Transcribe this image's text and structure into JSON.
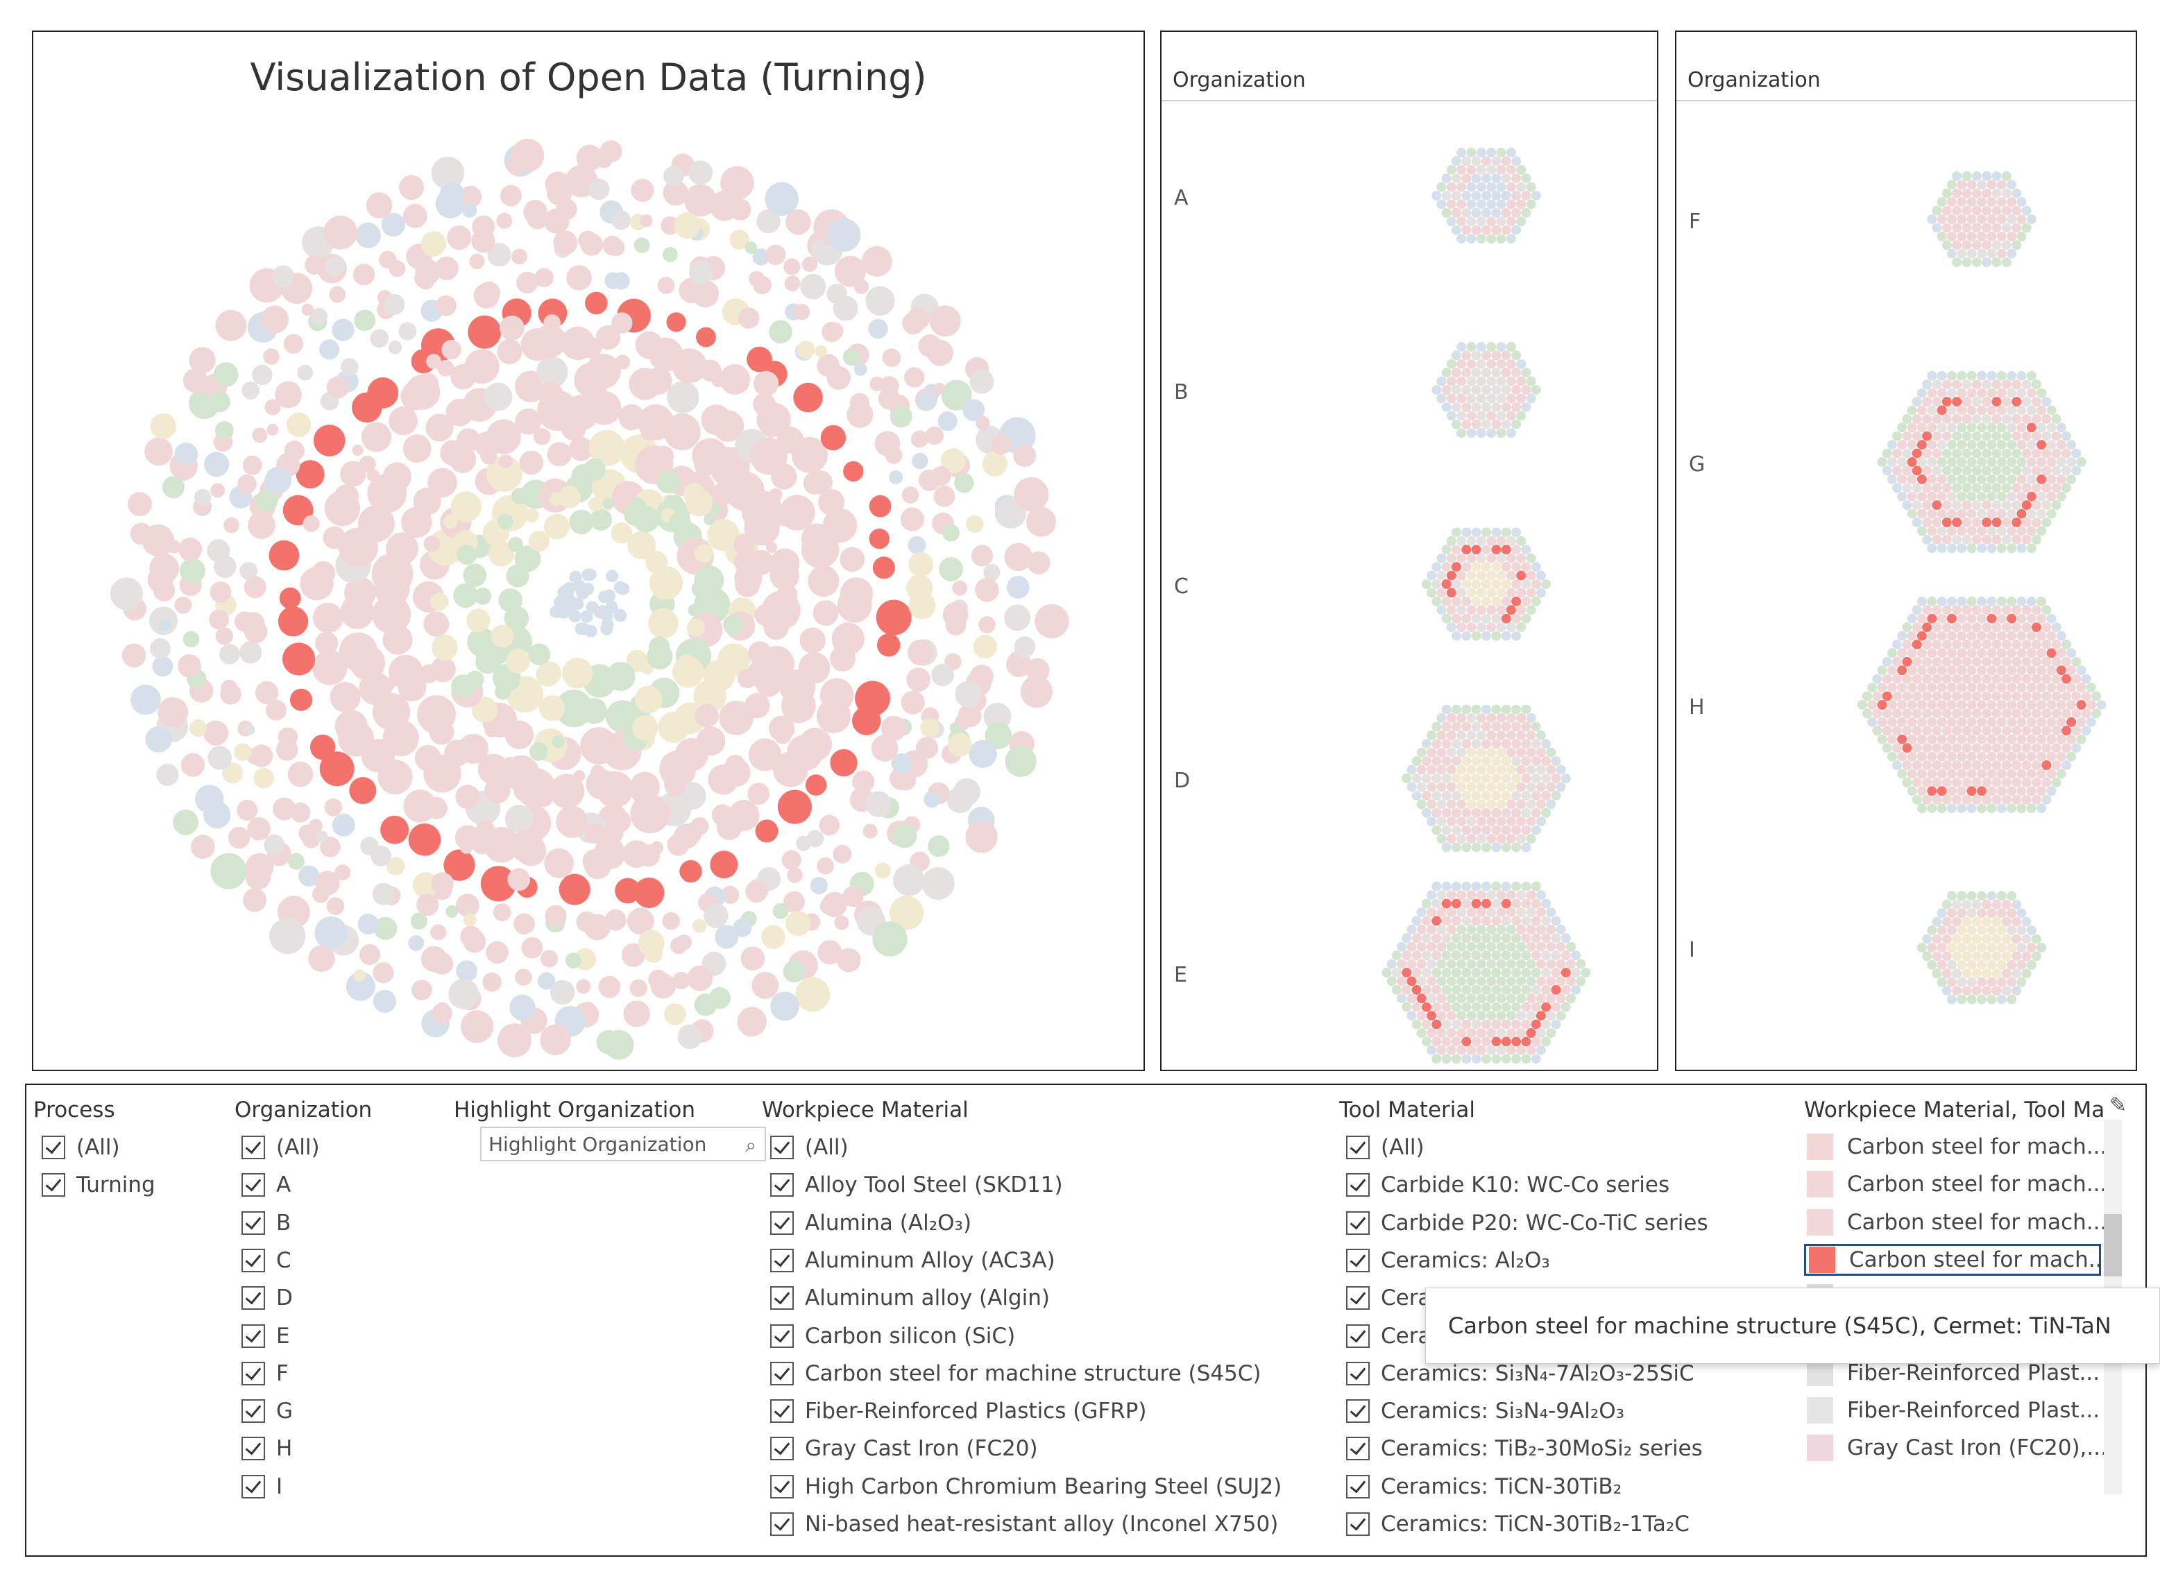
{
  "main": {
    "title": "Visualization of Open Data (Turning)"
  },
  "small_multiples": {
    "header": "Organization",
    "left_orgs": [
      "A",
      "B",
      "C",
      "D",
      "E"
    ],
    "right_orgs": [
      "F",
      "G",
      "H",
      "I"
    ]
  },
  "colors": {
    "highlight": "#f4726c",
    "pale_pink": "#f0d6d6",
    "pale_green": "#d3e4cf",
    "pale_blue": "#d6e0ea",
    "pale_yellow": "#f1ead0",
    "pale_gray": "#e6e1e1"
  },
  "filters": {
    "process": {
      "label": "Process",
      "items": [
        "(All)",
        "Turning"
      ]
    },
    "organization": {
      "label": "Organization",
      "items": [
        "(All)",
        "A",
        "B",
        "C",
        "D",
        "E",
        "F",
        "G",
        "H",
        "I"
      ]
    },
    "highlight_org": {
      "label": "Highlight Organization",
      "placeholder": "Highlight Organization"
    },
    "workpiece": {
      "label": "Workpiece Material",
      "items": [
        "(All)",
        "Alloy Tool Steel (SKD11)",
        "Alumina (Al₂O₃)",
        "Aluminum Alloy (AC3A)",
        "Aluminum alloy (Algin)",
        "Carbon silicon (SiC)",
        "Carbon steel for machine structure (S45C)",
        "Fiber-Reinforced Plastics (GFRP)",
        "Gray Cast Iron (FC20)",
        "High Carbon Chromium Bearing Steel (SUJ2)",
        "Ni-based heat-resistant alloy (Inconel X750)"
      ]
    },
    "tool": {
      "label": "Tool Material",
      "items": [
        "(All)",
        "Carbide K10: WC-Co series",
        "Carbide P20: WC-Co-TiC series",
        "Ceramics: Al₂O₃",
        "Cera",
        "Cera",
        "Ceramics: Si₃N₄-7Al₂O₃-25SiC",
        "Ceramics: Si₃N₄-9Al₂O₃",
        "Ceramics: TiB₂-30MoSi₂ series",
        "Ceramics: TiCN-30TiB₂",
        "Ceramics: TiCN-30TiB₂-1Ta₂C"
      ]
    },
    "legend": {
      "label": "Workpiece Material, Tool Ma",
      "items": [
        {
          "text": "Carbon steel for mach...",
          "color": "#f3d6d6"
        },
        {
          "text": "Carbon steel for mach...",
          "color": "#f3d6d6"
        },
        {
          "text": "Carbon steel for mach...",
          "color": "#f3d6d6"
        },
        {
          "text": "Carbon steel for mach...",
          "color": "#f4726c"
        },
        {
          "text": "Fiber-Reinforced Plast...",
          "color": "#dedede"
        },
        {
          "text": "Fiber-Reinforced Plast...",
          "color": "#dedede"
        },
        {
          "text": "Fiber-Reinforced Plast...",
          "color": "#e2e2e2"
        },
        {
          "text": "Fiber-Reinforced Plast...",
          "color": "#e5e5e5"
        },
        {
          "text": "Gray Cast Iron (FC20),...",
          "color": "#efd7dc"
        }
      ]
    },
    "tooltip": "Carbon steel for machine structure (S45C), Cermet: TiN-TaN"
  }
}
